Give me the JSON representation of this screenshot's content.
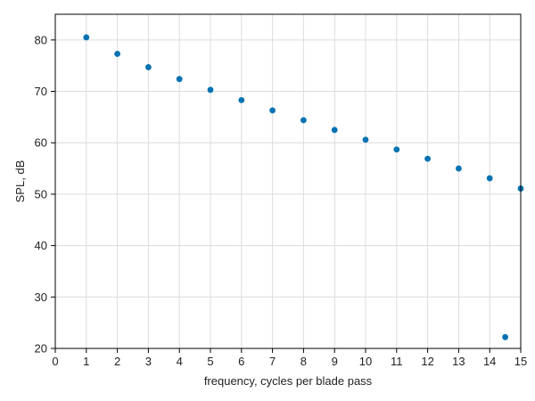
{
  "chart_data": {
    "type": "scatter",
    "title": "",
    "xlabel": "frequency, cycles per blade pass",
    "ylabel": "SPL, dB",
    "xlim": [
      0,
      15
    ],
    "ylim": [
      20,
      85
    ],
    "xticks": [
      0,
      1,
      2,
      3,
      4,
      5,
      6,
      7,
      8,
      9,
      10,
      11,
      12,
      13,
      14,
      15
    ],
    "yticks": [
      20,
      30,
      40,
      50,
      60,
      70,
      80
    ],
    "grid": true,
    "legend": "none",
    "marker_color": "#0072b2",
    "series": [
      {
        "x": [
          1,
          2,
          3,
          4,
          5,
          6,
          7,
          8,
          9,
          10,
          11,
          12,
          13,
          14,
          14.5,
          15
        ],
        "y": [
          80.5,
          77.3,
          74.7,
          72.4,
          70.3,
          68.3,
          66.3,
          64.4,
          62.5,
          60.6,
          58.7,
          56.9,
          55.0,
          53.1,
          22.2,
          51.1
        ]
      }
    ]
  }
}
